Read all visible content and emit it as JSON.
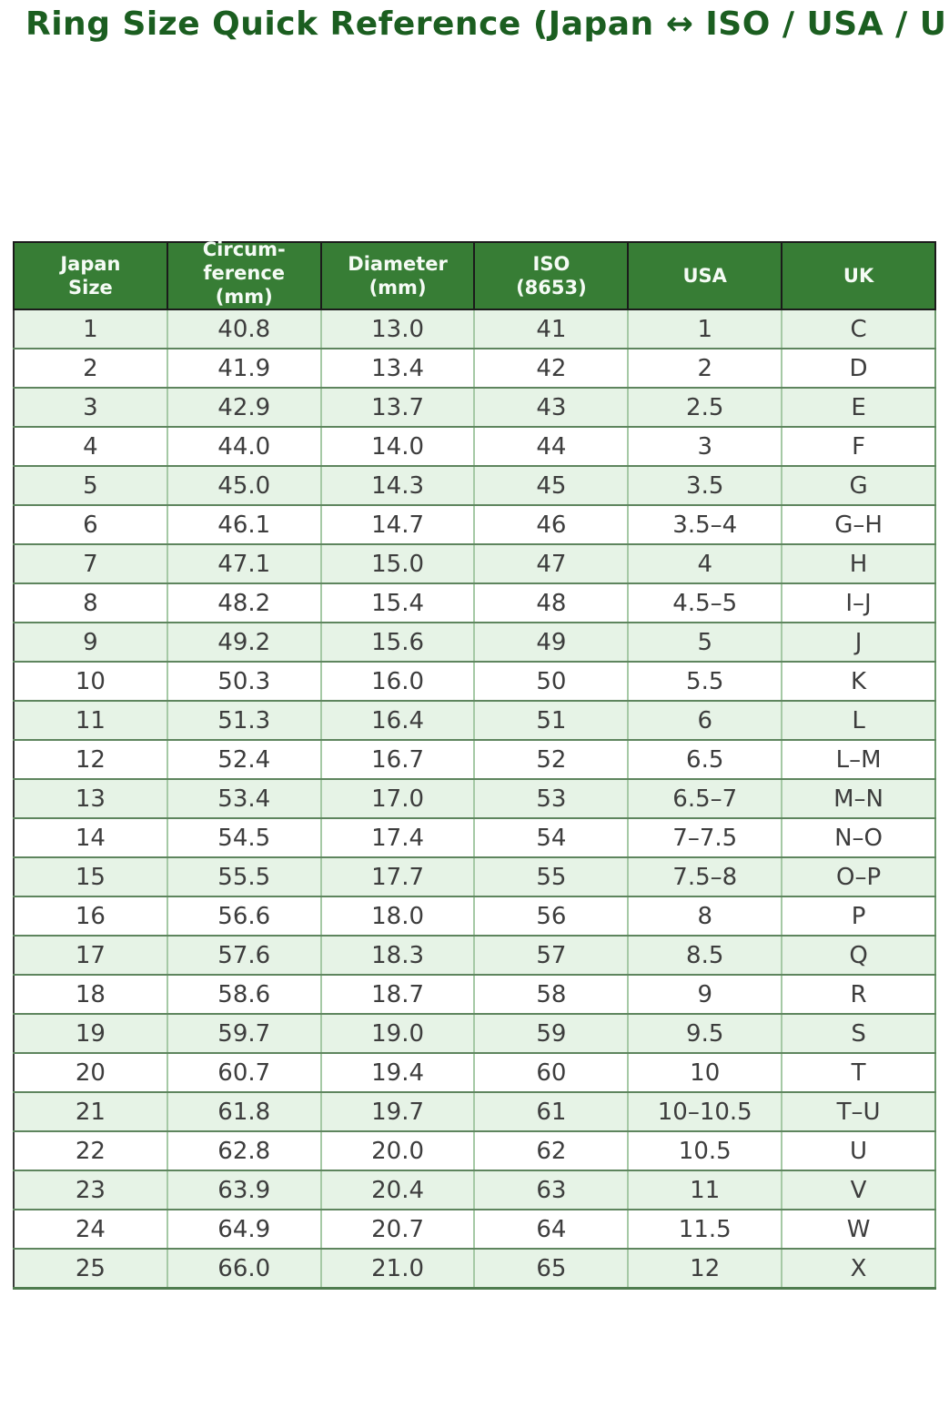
{
  "title": "Ring Size Quick Reference (Japan ↔ ISO / USA / UK)",
  "colors": {
    "title_green": "#1b5e20",
    "header_green": "#377d35",
    "header_text": "#f5fbf5",
    "stripe_green": "#e6f3e6",
    "row_white": "#ffffff",
    "cell_text": "#3d3d3d",
    "row_border": "#5e855e",
    "col_border": "#a5c9a5",
    "header_border": "#1b1b1b"
  },
  "table": {
    "headers": [
      {
        "id": "japan-size",
        "lines": [
          "Japan",
          "Size"
        ]
      },
      {
        "id": "circumference-mm",
        "lines": [
          "Circum-",
          "ference",
          "(mm)"
        ],
        "overflow": true
      },
      {
        "id": "diameter-mm",
        "lines": [
          "Diameter",
          "(mm)"
        ]
      },
      {
        "id": "iso-8653",
        "lines": [
          "ISO",
          "(8653)"
        ]
      },
      {
        "id": "usa",
        "lines": [
          "USA"
        ]
      },
      {
        "id": "uk",
        "lines": [
          "UK"
        ]
      }
    ]
  },
  "chart_data": {
    "type": "table",
    "title": "Ring Size Quick Reference (Japan ↔ ISO / USA / UK)",
    "columns": [
      "Japan Size",
      "Circumference (mm)",
      "Diameter (mm)",
      "ISO (8653)",
      "USA",
      "UK"
    ],
    "rows": [
      [
        "1",
        "40.8",
        "13.0",
        "41",
        "1",
        "C"
      ],
      [
        "2",
        "41.9",
        "13.4",
        "42",
        "2",
        "D"
      ],
      [
        "3",
        "42.9",
        "13.7",
        "43",
        "2.5",
        "E"
      ],
      [
        "4",
        "44.0",
        "14.0",
        "44",
        "3",
        "F"
      ],
      [
        "5",
        "45.0",
        "14.3",
        "45",
        "3.5",
        "G"
      ],
      [
        "6",
        "46.1",
        "14.7",
        "46",
        "3.5–4",
        "G–H"
      ],
      [
        "7",
        "47.1",
        "15.0",
        "47",
        "4",
        "H"
      ],
      [
        "8",
        "48.2",
        "15.4",
        "48",
        "4.5–5",
        "I–J"
      ],
      [
        "9",
        "49.2",
        "15.6",
        "49",
        "5",
        "J"
      ],
      [
        "10",
        "50.3",
        "16.0",
        "50",
        "5.5",
        "K"
      ],
      [
        "11",
        "51.3",
        "16.4",
        "51",
        "6",
        "L"
      ],
      [
        "12",
        "52.4",
        "16.7",
        "52",
        "6.5",
        "L–M"
      ],
      [
        "13",
        "53.4",
        "17.0",
        "53",
        "6.5–7",
        "M–N"
      ],
      [
        "14",
        "54.5",
        "17.4",
        "54",
        "7–7.5",
        "N–O"
      ],
      [
        "15",
        "55.5",
        "17.7",
        "55",
        "7.5–8",
        "O–P"
      ],
      [
        "16",
        "56.6",
        "18.0",
        "56",
        "8",
        "P"
      ],
      [
        "17",
        "57.6",
        "18.3",
        "57",
        "8.5",
        "Q"
      ],
      [
        "18",
        "58.6",
        "18.7",
        "58",
        "9",
        "R"
      ],
      [
        "19",
        "59.7",
        "19.0",
        "59",
        "9.5",
        "S"
      ],
      [
        "20",
        "60.7",
        "19.4",
        "60",
        "10",
        "T"
      ],
      [
        "21",
        "61.8",
        "19.7",
        "61",
        "10–10.5",
        "T–U"
      ],
      [
        "22",
        "62.8",
        "20.0",
        "62",
        "10.5",
        "U"
      ],
      [
        "23",
        "63.9",
        "20.4",
        "63",
        "11",
        "V"
      ],
      [
        "24",
        "64.9",
        "20.7",
        "64",
        "11.5",
        "W"
      ],
      [
        "25",
        "66.0",
        "21.0",
        "65",
        "12",
        "X"
      ]
    ]
  }
}
